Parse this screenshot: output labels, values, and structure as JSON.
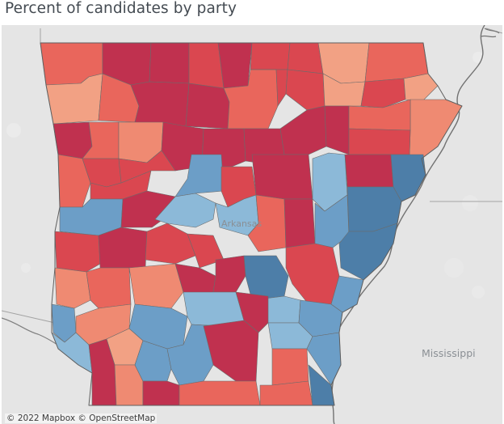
{
  "title": "Percent of candidates by party",
  "attribution": "© 2022 Mapbox  © OpenStreetMap",
  "map": {
    "state_labels": {
      "arkansas": "Arkansas",
      "mississippi": "Mississippi"
    },
    "colors": {
      "land": "#e4e4e4",
      "water_river": "#7a7a7a",
      "state_border": "#9a9a9a"
    },
    "legend_scale": {
      "r5": "#c0314f",
      "r4": "#da4750",
      "r3": "#e9665c",
      "r2": "#ef8a72",
      "r1": "#f2a184",
      "d1": "#8cb9d8",
      "d2": "#6c9ec7",
      "d3": "#4d7ea8"
    }
  }
}
